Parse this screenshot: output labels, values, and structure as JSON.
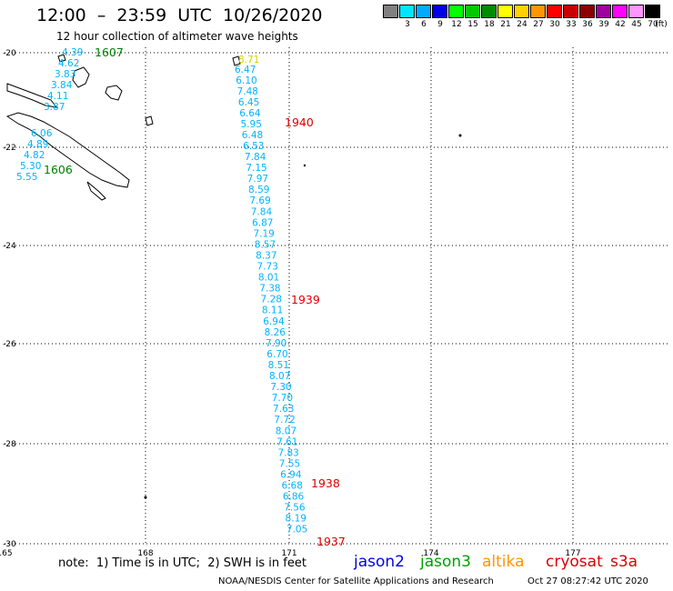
{
  "header": {
    "title": "12:00  –  23:59  UTC  10/26/2020",
    "subtitle": "12 hour collection of altimeter wave heights"
  },
  "legend": {
    "unit": "(ft)",
    "levels": [
      {
        "label": "",
        "color": "#808080"
      },
      {
        "label": "3",
        "color": "#00e5ff"
      },
      {
        "label": "6",
        "color": "#00aaff"
      },
      {
        "label": "9",
        "color": "#0000e6"
      },
      {
        "label": "12",
        "color": "#00ff00"
      },
      {
        "label": "15",
        "color": "#00c800"
      },
      {
        "label": "18",
        "color": "#008c00"
      },
      {
        "label": "21",
        "color": "#ffff00"
      },
      {
        "label": "24",
        "color": "#ffd200"
      },
      {
        "label": "27",
        "color": "#ff9600"
      },
      {
        "label": "30",
        "color": "#ff0000"
      },
      {
        "label": "33",
        "color": "#c80000"
      },
      {
        "label": "36",
        "color": "#8c0000"
      },
      {
        "label": "39",
        "color": "#a000a0"
      },
      {
        "label": "42",
        "color": "#ff00ff"
      },
      {
        "label": "45",
        "color": "#ff96ff"
      },
      {
        "label": "70",
        "color": "#000000"
      }
    ]
  },
  "map": {
    "lon_ticks": [
      "165",
      "168",
      "171",
      "174",
      "177"
    ],
    "lat_ticks": [
      "-20",
      "-22",
      "-24",
      "-26",
      "-28",
      "-30"
    ],
    "pass_labels": [
      {
        "text": "1607",
        "color": "#008000"
      },
      {
        "text": "1606",
        "color": "#008000"
      },
      {
        "text": "1940",
        "color": "#e00000"
      },
      {
        "text": "1939",
        "color": "#e00000"
      },
      {
        "text": "1938",
        "color": "#e00000"
      },
      {
        "text": "1937",
        "color": "#e00000"
      }
    ],
    "track_1607": [
      "4.39",
      "4.62",
      "3.83",
      "3.84",
      "4.11",
      "3.87"
    ],
    "track_1606": [
      "6.06",
      "4.89",
      "4.82",
      "5.30",
      "5.55"
    ],
    "track_1940_first": "8.71",
    "track_1940": [
      "6.47",
      "6.10",
      "7.48",
      "6.45",
      "6.64",
      "5.95",
      "6.48",
      "6.53"
    ],
    "track_main": [
      "7.84",
      "7.15",
      "7.97",
      "8.59",
      "7.69",
      "7.84",
      "6.87",
      "7.19",
      "8.57",
      "8.37",
      "7.73",
      "8.01",
      "7.38",
      "7.28",
      "8.11",
      "6.94",
      "8.26",
      "7.90",
      "6.70",
      "8.51",
      "8.07",
      "7.30",
      "7.70",
      "7.63",
      "7.72",
      "8.07",
      "7.61",
      "7.83",
      "7.55",
      "6.94",
      "6.68",
      "6.86",
      "7.56",
      "8.19",
      "7.05"
    ],
    "colors": {
      "swh": "#00b4ff",
      "yellow": "#d4d400",
      "coast": "#000000",
      "grid": "#000000"
    }
  },
  "footer": {
    "note": "note:  1) Time is in UTC;  2) SWH is in feet",
    "missions": [
      {
        "name": "jason2",
        "color": "#0000e6"
      },
      {
        "name": "jason3",
        "color": "#00a000"
      },
      {
        "name": "altika",
        "color": "#ff9600"
      },
      {
        "name": "cryosat",
        "color": "#e00000"
      },
      {
        "name": "s3a",
        "color": "#e00000"
      }
    ],
    "credit": "NOAA/NESDIS Center for Satellite Applications and Research",
    "timestamp": "Oct 27 08:27:42 UTC 2020"
  }
}
